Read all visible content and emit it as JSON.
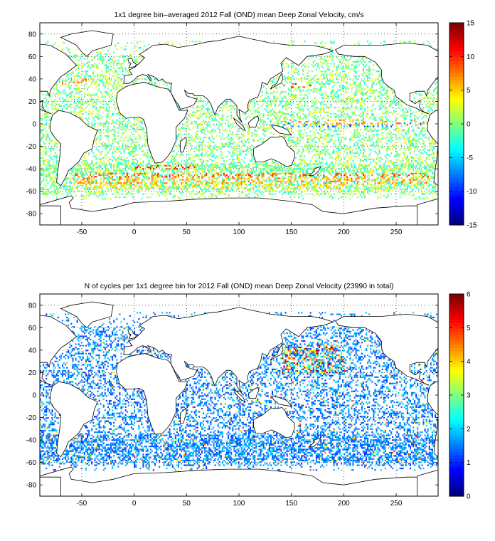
{
  "chart_data": [
    {
      "type": "heatmap",
      "title": "1x1 degree bin–averaged 2012 Fall (OND) mean Deep Zonal Velocity, cm/s",
      "xlabel": "",
      "ylabel": "",
      "xlim": [
        -90,
        290
      ],
      "ylim": [
        -90,
        90
      ],
      "x_ticks": [
        -50,
        0,
        50,
        100,
        150,
        200,
        250
      ],
      "y_ticks": [
        -80,
        -60,
        -40,
        -20,
        0,
        20,
        40,
        60,
        80
      ],
      "grid": true,
      "grid_style": "dotted",
      "colormap": "jet",
      "colorbar": {
        "min": -15,
        "max": 15,
        "ticks": [
          -15,
          -10,
          -5,
          0,
          5,
          10,
          15
        ]
      },
      "bands": [
        {
          "lat": -38,
          "lon_from": 0,
          "lon_to": 60,
          "value": 12
        },
        {
          "lat": -45,
          "lon_from": -60,
          "lon_to": 280,
          "value": 10
        },
        {
          "lat": -50,
          "lon_from": -60,
          "lon_to": 280,
          "value": 8
        },
        {
          "lat": -55,
          "lon_from": -60,
          "lon_to": 200,
          "value": 6
        },
        {
          "lat": 35,
          "lon_from": 140,
          "lon_to": 170,
          "value": 12
        },
        {
          "lat": 0,
          "lon_from": 140,
          "lon_to": 280,
          "value": -10
        },
        {
          "lat": 2,
          "lon_from": 140,
          "lon_to": 280,
          "value": 8
        },
        {
          "lat": 38,
          "lon_from": -70,
          "lon_to": -40,
          "value": 9
        }
      ],
      "background_value_range": [
        -4,
        4
      ]
    },
    {
      "type": "heatmap",
      "title": "N of cycles per 1x1 degree bin for 2012 Fall (OND) mean Deep Zonal Velocity (23990 in total)",
      "xlabel": "",
      "ylabel": "",
      "xlim": [
        -90,
        290
      ],
      "ylim": [
        -90,
        90
      ],
      "x_ticks": [
        -50,
        0,
        50,
        100,
        150,
        200,
        250
      ],
      "y_ticks": [
        -80,
        -60,
        -40,
        -20,
        0,
        20,
        40,
        60,
        80
      ],
      "grid": true,
      "grid_style": "dotted",
      "colormap": "jet",
      "total_cycles": 23990,
      "colorbar": {
        "min": 0,
        "max": 6,
        "ticks": [
          0,
          1,
          2,
          3,
          4,
          5,
          6
        ]
      },
      "typical_value_range": [
        1,
        2
      ],
      "high_density_region": {
        "lon_from": 140,
        "lon_to": 200,
        "lat_from": 20,
        "lat_to": 45,
        "value_range": [
          2,
          6
        ]
      }
    }
  ],
  "colors": {
    "land_outline": "#000000",
    "grid": "#000000",
    "background": "#ffffff"
  }
}
